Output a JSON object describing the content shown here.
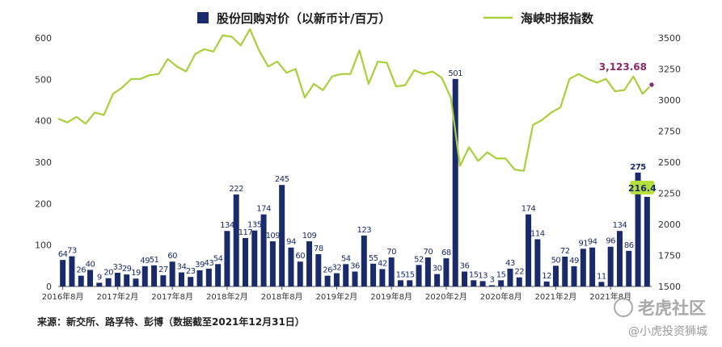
{
  "chart_data": {
    "type": "bar",
    "title": "",
    "legend": {
      "position": "top",
      "items": [
        {
          "label": "股份回购对价（以新币计/百万）",
          "color": "#1a2b6b",
          "marker": "square"
        },
        {
          "label": "海峡时报指数",
          "color": "#a8d03a",
          "marker": "line"
        }
      ]
    },
    "x_tick_labels": [
      "2016年8月",
      "2017年2月",
      "2017年8月",
      "2018年2月",
      "2018年8月",
      "2019年2月",
      "2019年8月",
      "2020年2月",
      "2020年8月",
      "2021年2月",
      "2021年8月"
    ],
    "y_left": {
      "min": 0,
      "max": 600,
      "ticks": [
        "0",
        "100",
        "200",
        "300",
        "400",
        "500",
        "600"
      ]
    },
    "y_right": {
      "min": 1500,
      "max": 3500,
      "ticks": [
        "1500",
        "1750",
        "2000",
        "2250",
        "2500",
        "2750",
        "3000",
        "3250",
        "3500"
      ]
    },
    "grid": false,
    "series": [
      {
        "name": "股份回购对价（以新币计/百万）",
        "type": "bar",
        "axis": "left",
        "color": "#1a2b6b",
        "values": [
          64,
          73,
          26,
          40,
          9,
          20,
          33,
          29,
          19,
          49,
          51,
          27,
          60,
          34,
          23,
          39,
          43,
          54,
          134,
          222,
          117,
          135,
          174,
          109,
          245,
          94,
          60,
          109,
          78,
          26,
          32,
          54,
          36,
          123,
          55,
          42,
          70,
          15,
          15,
          52,
          70,
          30,
          68,
          501,
          36,
          15,
          13,
          3,
          15,
          43,
          22,
          174,
          114,
          12,
          50,
          72,
          49,
          91,
          94,
          11,
          96,
          134,
          86,
          275,
          216.4
        ],
        "labels": [
          "64",
          "73",
          "26",
          "40",
          "9",
          "20",
          "33",
          "29",
          "19",
          "49",
          "51",
          "27",
          "60",
          "34",
          "23",
          "39",
          "43",
          "54",
          "134",
          "222",
          "117",
          "135",
          "174",
          "109",
          "245",
          "94",
          "60",
          "109",
          "78",
          "26",
          "32",
          "54",
          "36",
          "123",
          "55",
          "42",
          "70",
          "15",
          "15",
          "52",
          "70",
          "30",
          "68",
          "501",
          "36",
          "15",
          "13",
          "3",
          "15",
          "43",
          "22",
          "174",
          "114",
          "12",
          "50",
          "72",
          "49",
          "91",
          "94",
          "11",
          "96",
          "134",
          "86",
          "275",
          "216.4"
        ]
      },
      {
        "name": "海峡时报指数",
        "type": "line",
        "axis": "right",
        "color": "#a8d03a",
        "values": [
          2850,
          2820,
          2865,
          2810,
          2900,
          2880,
          3050,
          3100,
          3170,
          3170,
          3200,
          3210,
          3330,
          3270,
          3230,
          3370,
          3410,
          3390,
          3520,
          3510,
          3440,
          3570,
          3400,
          3270,
          3310,
          3220,
          3250,
          3020,
          3130,
          3080,
          3190,
          3210,
          3210,
          3400,
          3130,
          3310,
          3300,
          3110,
          3120,
          3240,
          3210,
          3230,
          3180,
          3020,
          2470,
          2620,
          2510,
          2580,
          2530,
          2530,
          2440,
          2430,
          2800,
          2840,
          2900,
          2940,
          3170,
          3210,
          3170,
          3140,
          3170,
          3070,
          3080,
          3190,
          3050,
          3123.68
        ],
        "end_label": "3,123.68",
        "end_label_color": "#8a2a6a"
      }
    ]
  },
  "source_note": "来源：新交所、路孚特、彭博（数据截至2021年12月31日）",
  "watermark": {
    "primary": "老虎社区",
    "secondary": "@小虎投资狮城"
  }
}
